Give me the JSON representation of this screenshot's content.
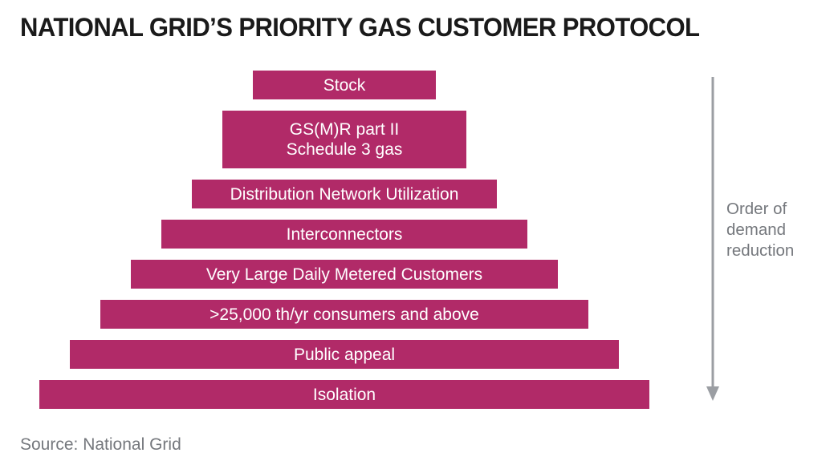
{
  "title": "NATIONAL GRID’S PRIORITY GAS CUSTOMER PROTOCOL",
  "pyramid": {
    "levels": [
      {
        "lines": [
          "Stock"
        ]
      },
      {
        "lines": [
          "GS(M)R part II",
          "Schedule 3 gas"
        ]
      },
      {
        "lines": [
          "Distribution Network Utilization"
        ]
      },
      {
        "lines": [
          "Interconnectors"
        ]
      },
      {
        "lines": [
          "Very Large Daily Metered Customers"
        ]
      },
      {
        "lines": [
          ">25,000 th/yr consumers and above"
        ]
      },
      {
        "lines": [
          "Public appeal"
        ]
      },
      {
        "lines": [
          "Isolation"
        ]
      }
    ]
  },
  "arrow_label": "Order of demand reduction",
  "source": "Source: National Grid",
  "colors": {
    "bar": "#b12a68",
    "bar_text": "#ffffff",
    "title_text": "#1a1a1a",
    "muted_text": "#75787d",
    "arrow": "#9b9ea3"
  }
}
